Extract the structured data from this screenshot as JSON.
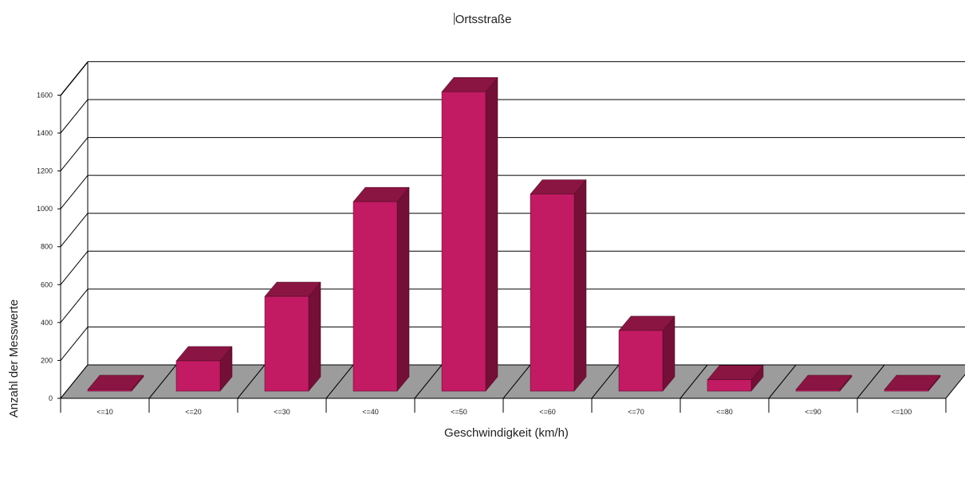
{
  "chart_data": {
    "type": "bar",
    "title": "Ortsstraße",
    "xlabel": "Geschwindigkeit (km/h)",
    "ylabel": "Anzahl der Messwerte",
    "categories": [
      "<=10",
      "<=20",
      "<=30",
      "<=40",
      "<=50",
      "<=60",
      "<=70",
      "<=80",
      "<=90",
      "<=100"
    ],
    "values": [
      5,
      160,
      500,
      1000,
      1580,
      1040,
      320,
      60,
      5,
      5
    ],
    "ylim": [
      0,
      1600
    ],
    "yticks": [
      0,
      200,
      400,
      600,
      800,
      1000,
      1200,
      1400,
      1600
    ],
    "grid": true,
    "legend": "none",
    "three_d": true,
    "colors": {
      "bar_front": "#c31b63",
      "bar_side": "#740f37",
      "bar_top": "#8a1442",
      "floor": "#9c9c9c",
      "gridline": "#000000"
    }
  }
}
